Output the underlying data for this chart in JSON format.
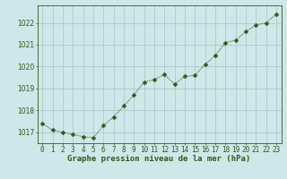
{
  "hours": [
    0,
    1,
    2,
    3,
    4,
    5,
    6,
    7,
    8,
    9,
    10,
    11,
    12,
    13,
    14,
    15,
    16,
    17,
    18,
    19,
    20,
    21,
    22,
    23
  ],
  "pressure": [
    1017.4,
    1017.1,
    1017.0,
    1016.9,
    1016.8,
    1016.75,
    1017.3,
    1017.7,
    1018.2,
    1018.7,
    1019.3,
    1019.4,
    1019.65,
    1019.2,
    1019.55,
    1019.6,
    1020.1,
    1020.5,
    1021.1,
    1021.2,
    1021.6,
    1021.9,
    1022.0,
    1022.4
  ],
  "line_color": "#2d5a1b",
  "marker": "D",
  "marker_size": 2.5,
  "bg_color": "#cce8e8",
  "grid_color": "#aacccc",
  "tick_color": "#2d5a1b",
  "label_color": "#2d5a1b",
  "xlabel": "Graphe pression niveau de la mer (hPa)",
  "ylim": [
    1016.5,
    1022.8
  ],
  "yticks": [
    1017,
    1018,
    1019,
    1020,
    1021,
    1022
  ],
  "xtick_labels": [
    "0",
    "1",
    "2",
    "3",
    "4",
    "5",
    "6",
    "7",
    "8",
    "9",
    "10",
    "11",
    "12",
    "13",
    "14",
    "15",
    "16",
    "17",
    "18",
    "19",
    "20",
    "21",
    "22",
    "23"
  ],
  "title_fontsize": 6.5,
  "axis_fontsize": 5.8,
  "tick_fontsize": 5.5
}
